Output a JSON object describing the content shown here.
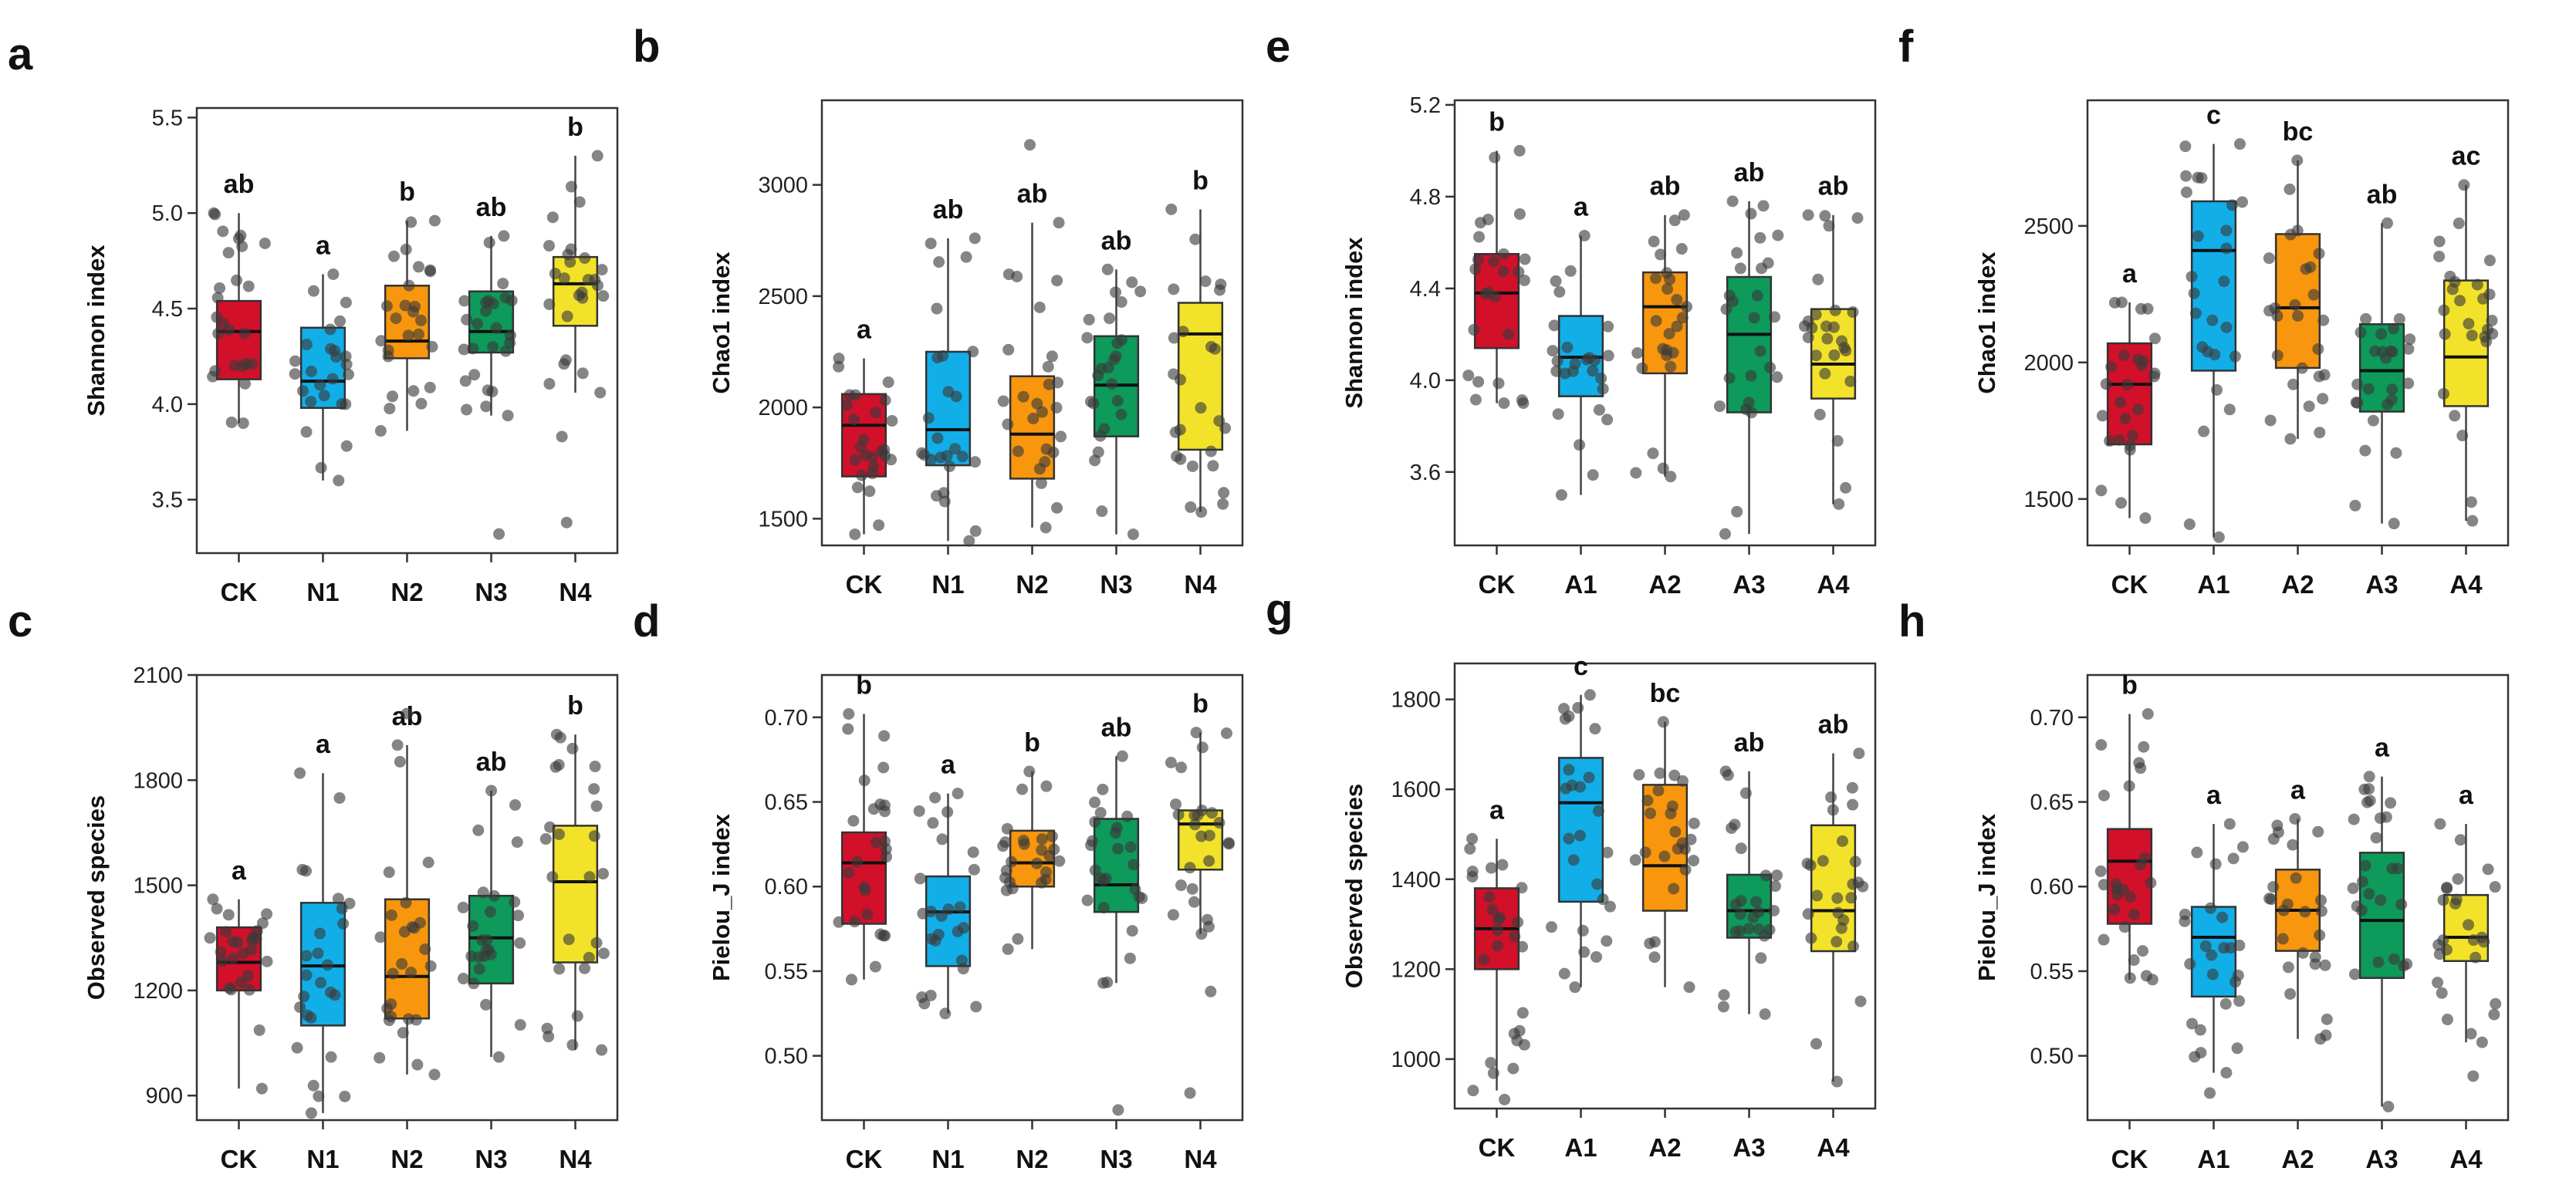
{
  "colors": {
    "CK": "#d2102a",
    "T1": "#12aee8",
    "T2": "#f8960e",
    "T3": "#0e9a5a",
    "T4": "#f2e32a",
    "points": "#3a3a3a",
    "frame": "#333333"
  },
  "chart_data": [
    {
      "letter": "a",
      "type": "box",
      "title": "",
      "xlabel": "",
      "ylabel": "Shannon index",
      "categories": [
        "CK",
        "N1",
        "N2",
        "N3",
        "N4"
      ],
      "ylim": [
        3.22,
        5.55
      ],
      "yticks": [
        3.5,
        4.0,
        4.5,
        5.0,
        5.5
      ],
      "ytick_labels": [
        "3.5",
        "4.0",
        "4.5",
        "5.0",
        "5.5"
      ],
      "series": [
        {
          "name": "CK",
          "min": 3.9,
          "q1": 4.13,
          "median": 4.38,
          "q3": 4.54,
          "max": 5.0,
          "sig": "ab"
        },
        {
          "name": "N1",
          "min": 3.6,
          "q1": 3.98,
          "median": 4.12,
          "q3": 4.4,
          "max": 4.68,
          "sig": "a"
        },
        {
          "name": "N2",
          "min": 3.86,
          "q1": 4.24,
          "median": 4.33,
          "q3": 4.62,
          "max": 4.96,
          "sig": "b"
        },
        {
          "name": "N3",
          "min": 3.94,
          "q1": 4.27,
          "median": 4.38,
          "q3": 4.59,
          "max": 4.88,
          "sig": "ab"
        },
        {
          "name": "N4",
          "min": 4.06,
          "q1": 4.41,
          "median": 4.63,
          "q3": 4.77,
          "max": 5.3,
          "sig": "b"
        }
      ],
      "outliers": [
        [
          3,
          3.32
        ],
        [
          4,
          3.38
        ],
        [
          4,
          3.83
        ]
      ]
    },
    {
      "letter": "b",
      "type": "box",
      "title": "",
      "xlabel": "",
      "ylabel": "Chao1 index",
      "categories": [
        "CK",
        "N1",
        "N2",
        "N3",
        "N4"
      ],
      "ylim": [
        1380,
        3380
      ],
      "yticks": [
        1500,
        2000,
        2500,
        3000
      ],
      "ytick_labels": [
        "1500",
        "2000",
        "2500",
        "3000"
      ],
      "series": [
        {
          "name": "CK",
          "min": 1430,
          "q1": 1690,
          "median": 1920,
          "q3": 2060,
          "max": 2220,
          "sig": "a"
        },
        {
          "name": "N1",
          "min": 1400,
          "q1": 1740,
          "median": 1900,
          "q3": 2250,
          "max": 2760,
          "sig": "ab"
        },
        {
          "name": "N2",
          "min": 1460,
          "q1": 1680,
          "median": 1880,
          "q3": 2140,
          "max": 2830,
          "sig": "ab"
        },
        {
          "name": "N3",
          "min": 1430,
          "q1": 1870,
          "median": 2100,
          "q3": 2320,
          "max": 2620,
          "sig": "ab"
        },
        {
          "name": "N4",
          "min": 1530,
          "q1": 1810,
          "median": 2330,
          "q3": 2470,
          "max": 2890,
          "sig": "b"
        }
      ],
      "outliers": [
        [
          2,
          3180
        ]
      ]
    },
    {
      "letter": "c",
      "type": "box",
      "title": "",
      "xlabel": "",
      "ylabel": "Observed species",
      "categories": [
        "CK",
        "N1",
        "N2",
        "N3",
        "N4"
      ],
      "ylim": [
        830,
        2100
      ],
      "yticks": [
        900,
        1200,
        1500,
        1800,
        2100
      ],
      "ytick_labels": [
        "900",
        "1200",
        "1500",
        "1800",
        "2100"
      ],
      "series": [
        {
          "name": "CK",
          "min": 920,
          "q1": 1200,
          "median": 1280,
          "q3": 1380,
          "max": 1460,
          "sig": "a"
        },
        {
          "name": "N1",
          "min": 850,
          "q1": 1100,
          "median": 1270,
          "q3": 1450,
          "max": 1820,
          "sig": "a"
        },
        {
          "name": "N2",
          "min": 960,
          "q1": 1120,
          "median": 1240,
          "q3": 1460,
          "max": 1900,
          "sig": "ab"
        },
        {
          "name": "N3",
          "min": 1010,
          "q1": 1220,
          "median": 1350,
          "q3": 1470,
          "max": 1770,
          "sig": "ab"
        },
        {
          "name": "N4",
          "min": 1030,
          "q1": 1280,
          "median": 1510,
          "q3": 1670,
          "max": 1930,
          "sig": "b"
        }
      ],
      "outliers": [
        [
          2,
          1990
        ]
      ]
    },
    {
      "letter": "d",
      "type": "box",
      "title": "",
      "xlabel": "",
      "ylabel": "Pielou_J index",
      "categories": [
        "CK",
        "N1",
        "N2",
        "N3",
        "N4"
      ],
      "ylim": [
        0.462,
        0.725
      ],
      "yticks": [
        0.5,
        0.55,
        0.6,
        0.65,
        0.7
      ],
      "ytick_labels": [
        "0.50",
        "0.55",
        "0.60",
        "0.65",
        "0.70"
      ],
      "series": [
        {
          "name": "CK",
          "min": 0.545,
          "q1": 0.578,
          "median": 0.614,
          "q3": 0.632,
          "max": 0.702,
          "sig": "b"
        },
        {
          "name": "N1",
          "min": 0.525,
          "q1": 0.553,
          "median": 0.585,
          "q3": 0.606,
          "max": 0.655,
          "sig": "a"
        },
        {
          "name": "N2",
          "min": 0.563,
          "q1": 0.6,
          "median": 0.614,
          "q3": 0.633,
          "max": 0.668,
          "sig": "b"
        },
        {
          "name": "N3",
          "min": 0.543,
          "q1": 0.585,
          "median": 0.601,
          "q3": 0.64,
          "max": 0.677,
          "sig": "ab"
        },
        {
          "name": "N4",
          "min": 0.572,
          "q1": 0.61,
          "median": 0.637,
          "q3": 0.645,
          "max": 0.691,
          "sig": "b"
        }
      ],
      "outliers": [
        [
          3,
          0.468
        ],
        [
          4,
          0.478
        ],
        [
          4,
          0.538
        ]
      ]
    },
    {
      "letter": "e",
      "type": "box",
      "title": "",
      "xlabel": "",
      "ylabel": "Shannon index",
      "categories": [
        "CK",
        "A1",
        "A2",
        "A3",
        "A4"
      ],
      "ylim": [
        3.28,
        5.22
      ],
      "yticks": [
        3.6,
        4.0,
        4.4,
        4.8,
        5.2
      ],
      "ytick_labels": [
        "3.6",
        "4.0",
        "4.4",
        "4.8",
        "5.2"
      ],
      "series": [
        {
          "name": "CK",
          "min": 3.9,
          "q1": 4.14,
          "median": 4.38,
          "q3": 4.55,
          "max": 5.0,
          "sig": "b"
        },
        {
          "name": "A1",
          "min": 3.5,
          "q1": 3.93,
          "median": 4.1,
          "q3": 4.28,
          "max": 4.63,
          "sig": "a"
        },
        {
          "name": "A2",
          "min": 3.58,
          "q1": 4.03,
          "median": 4.32,
          "q3": 4.47,
          "max": 4.72,
          "sig": "ab"
        },
        {
          "name": "A3",
          "min": 3.33,
          "q1": 3.86,
          "median": 4.2,
          "q3": 4.45,
          "max": 4.78,
          "sig": "ab"
        },
        {
          "name": "A4",
          "min": 3.46,
          "q1": 3.92,
          "median": 4.07,
          "q3": 4.31,
          "max": 4.72,
          "sig": "ab"
        }
      ],
      "outliers": []
    },
    {
      "letter": "f",
      "type": "box",
      "title": "",
      "xlabel": "",
      "ylabel": "Chao1 index",
      "categories": [
        "CK",
        "A1",
        "A2",
        "A3",
        "A4"
      ],
      "ylim": [
        1330,
        2960
      ],
      "yticks": [
        1500,
        2000,
        2500
      ],
      "ytick_labels": [
        "1500",
        "2000",
        "2500"
      ],
      "series": [
        {
          "name": "CK",
          "min": 1430,
          "q1": 1700,
          "median": 1920,
          "q3": 2070,
          "max": 2220,
          "sig": "a"
        },
        {
          "name": "A1",
          "min": 1360,
          "q1": 1970,
          "median": 2410,
          "q3": 2590,
          "max": 2800,
          "sig": "c"
        },
        {
          "name": "A2",
          "min": 1720,
          "q1": 1980,
          "median": 2200,
          "q3": 2470,
          "max": 2740,
          "sig": "bc"
        },
        {
          "name": "A3",
          "min": 1410,
          "q1": 1820,
          "median": 1970,
          "q3": 2140,
          "max": 2510,
          "sig": "ab"
        },
        {
          "name": "A4",
          "min": 1420,
          "q1": 1840,
          "median": 2020,
          "q3": 2300,
          "max": 2650,
          "sig": "ac"
        }
      ],
      "outliers": []
    },
    {
      "letter": "g",
      "type": "box",
      "title": "",
      "xlabel": "",
      "ylabel": "Observed species",
      "categories": [
        "CK",
        "A1",
        "A2",
        "A3",
        "A4"
      ],
      "ylim": [
        890,
        1880
      ],
      "yticks": [
        1000,
        1200,
        1400,
        1600,
        1800
      ],
      "ytick_labels": [
        "1000",
        "1200",
        "1400",
        "1600",
        "1800"
      ],
      "series": [
        {
          "name": "CK",
          "min": 930,
          "q1": 1200,
          "median": 1290,
          "q3": 1380,
          "max": 1490,
          "sig": "a"
        },
        {
          "name": "A1",
          "min": 1160,
          "q1": 1350,
          "median": 1570,
          "q3": 1670,
          "max": 1810,
          "sig": "c"
        },
        {
          "name": "A2",
          "min": 1160,
          "q1": 1330,
          "median": 1430,
          "q3": 1610,
          "max": 1750,
          "sig": "bc"
        },
        {
          "name": "A3",
          "min": 1100,
          "q1": 1270,
          "median": 1330,
          "q3": 1410,
          "max": 1640,
          "sig": "ab"
        },
        {
          "name": "A4",
          "min": 950,
          "q1": 1240,
          "median": 1330,
          "q3": 1520,
          "max": 1680,
          "sig": "ab"
        }
      ],
      "outliers": [
        [
          0,
          910
        ]
      ]
    },
    {
      "letter": "h",
      "type": "box",
      "title": "",
      "xlabel": "",
      "ylabel": "Pielou_J index",
      "categories": [
        "CK",
        "A1",
        "A2",
        "A3",
        "A4"
      ],
      "ylim": [
        0.462,
        0.725
      ],
      "yticks": [
        0.5,
        0.55,
        0.6,
        0.65,
        0.7
      ],
      "ytick_labels": [
        "0.50",
        "0.55",
        "0.60",
        "0.65",
        "0.70"
      ],
      "series": [
        {
          "name": "CK",
          "min": 0.545,
          "q1": 0.578,
          "median": 0.615,
          "q3": 0.634,
          "max": 0.702,
          "sig": "b"
        },
        {
          "name": "A1",
          "min": 0.49,
          "q1": 0.535,
          "median": 0.57,
          "q3": 0.588,
          "max": 0.637,
          "sig": "a"
        },
        {
          "name": "A2",
          "min": 0.51,
          "q1": 0.562,
          "median": 0.586,
          "q3": 0.61,
          "max": 0.64,
          "sig": "a"
        },
        {
          "name": "A3",
          "min": 0.47,
          "q1": 0.546,
          "median": 0.58,
          "q3": 0.62,
          "max": 0.665,
          "sig": "a"
        },
        {
          "name": "A4",
          "min": 0.508,
          "q1": 0.556,
          "median": 0.57,
          "q3": 0.595,
          "max": 0.637,
          "sig": "a"
        }
      ],
      "outliers": [
        [
          1,
          0.478
        ],
        [
          4,
          0.488
        ]
      ]
    }
  ]
}
